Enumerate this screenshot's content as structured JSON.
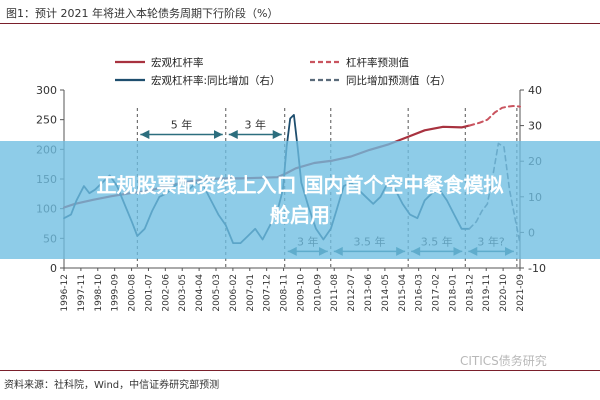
{
  "page": {
    "figure_title": "图1：预计 2021 年将进入本轮债务周期下行阶段（%）",
    "source": "资料来源：社科院，Wind，中信证券研究部预测",
    "watermark": "CITICS债务研究",
    "overlay_text": "正规股票配资线上入口 国内首个空中餐食模拟舱启用"
  },
  "chart_data": {
    "type": "line",
    "title": "",
    "xlabel": "",
    "ylabel_left": "",
    "ylabel_right": "",
    "ylim_left": [
      0,
      300
    ],
    "yticks_left": [
      0,
      50,
      100,
      150,
      200,
      250,
      300
    ],
    "ylim_right": [
      -10,
      40
    ],
    "yticks_right": [
      -10,
      0,
      10,
      20,
      30,
      40
    ],
    "grid": false,
    "legend_position": "top",
    "x_tick_labels": [
      "1996-12",
      "1997-11",
      "1998-10",
      "1999-09",
      "2000-08",
      "2001-07",
      "2002-06",
      "2003-05",
      "2004-04",
      "2005-03",
      "2006-02",
      "2007-01",
      "2007-12",
      "2008-11",
      "2009-10",
      "2010-09",
      "2011-08",
      "2012-07",
      "2013-06",
      "2014-05",
      "2015-04",
      "2016-03",
      "2017-02",
      "2018-01",
      "2018-12",
      "2019-11",
      "2020-10",
      "2021-09"
    ],
    "x_range": [
      1996.92,
      2021.67
    ],
    "series": [
      {
        "name": "宏观杠杆率",
        "axis": "left",
        "color": "#a8323f",
        "style": "solid",
        "width": 2.2,
        "x": [
          1996.92,
          1997.5,
          1998.5,
          1999.5,
          2000.5,
          2001.5,
          2002.5,
          2003.5,
          2004.5,
          2005.5,
          2006.5,
          2007.5,
          2008.5,
          2009.0,
          2009.5,
          2010.5,
          2011.5,
          2012.5,
          2013.5,
          2014.5,
          2015.5,
          2016.5,
          2017.5,
          2018.5,
          2018.92
        ],
        "y": [
          102,
          108,
          115,
          121,
          126,
          130,
          138,
          145,
          149,
          151,
          151,
          152,
          153,
          160,
          168,
          177,
          181,
          188,
          199,
          208,
          220,
          232,
          238,
          237,
          240
        ]
      },
      {
        "name": "杠杆率预测值",
        "axis": "left",
        "color": "#c9545f",
        "style": "dashed",
        "width": 2.0,
        "x": [
          2018.92,
          2019.5,
          2019.9,
          2020.3,
          2020.7,
          2021.0,
          2021.3,
          2021.67
        ],
        "y": [
          240,
          245,
          250,
          262,
          270,
          272,
          273,
          272
        ]
      },
      {
        "name": "宏观杠杆率:同比增加（右）",
        "axis": "right",
        "color": "#1e4e6e",
        "style": "solid",
        "width": 1.8,
        "x": [
          1996.92,
          1997.3,
          1997.6,
          1998.0,
          1998.3,
          1998.6,
          1999.0,
          1999.4,
          1999.8,
          2000.2,
          2000.6,
          2000.9,
          2001.3,
          2001.7,
          2002.1,
          2002.5,
          2002.9,
          2003.3,
          2003.7,
          2004.1,
          2004.5,
          2004.9,
          2005.3,
          2005.7,
          2006.1,
          2006.5,
          2006.9,
          2007.3,
          2007.7,
          2008.1,
          2008.5,
          2008.8,
          2009.0,
          2009.2,
          2009.4,
          2009.6,
          2009.8,
          2010.2,
          2010.6,
          2011.0,
          2011.4,
          2011.7,
          2012.1,
          2012.5,
          2012.9,
          2013.3,
          2013.7,
          2014.1,
          2014.5,
          2014.9,
          2015.3,
          2015.7,
          2016.1,
          2016.5,
          2016.9,
          2017.3,
          2017.7,
          2018.1,
          2018.5,
          2018.92
        ],
        "y": [
          4,
          5,
          9,
          13,
          11,
          12,
          14,
          16,
          13,
          8,
          3,
          -1,
          1,
          6,
          10,
          11,
          13,
          14,
          12,
          14,
          13,
          9,
          5,
          2,
          -3,
          -3,
          -1,
          1,
          -2,
          2,
          6,
          12,
          24,
          32,
          33,
          24,
          14,
          7,
          1,
          -2,
          1,
          6,
          13,
          14,
          12,
          10,
          8,
          10,
          14,
          12,
          8,
          5,
          4,
          9,
          11,
          12,
          9,
          5,
          1,
          1
        ]
      },
      {
        "name": "同比增加预测值（右）",
        "axis": "right",
        "color": "#5a6b7a",
        "style": "dashed",
        "width": 1.6,
        "x": [
          2018.92,
          2019.3,
          2019.6,
          2019.9,
          2020.2,
          2020.5,
          2020.8,
          2021.1,
          2021.4,
          2021.67
        ],
        "y": [
          1,
          3,
          6,
          8,
          16,
          25,
          24,
          12,
          4,
          -3
        ]
      }
    ],
    "annotations": [
      {
        "label": "5 年",
        "from": 2000.9,
        "to": 2005.7,
        "axis": "left",
        "y": 225,
        "label_pos": "above"
      },
      {
        "label": "3 年",
        "from": 2005.7,
        "to": 2008.9,
        "axis": "left",
        "y": 225,
        "label_pos": "above"
      },
      {
        "label": "3 年",
        "from": 2008.9,
        "to": 2011.4,
        "axis": "left",
        "y": 28,
        "label_pos": "above"
      },
      {
        "label": "3.5 年",
        "from": 2011.4,
        "to": 2015.6,
        "axis": "left",
        "y": 28,
        "label_pos": "above"
      },
      {
        "label": "3.5 年",
        "from": 2015.6,
        "to": 2018.7,
        "axis": "left",
        "y": 28,
        "label_pos": "above"
      },
      {
        "label": "3 年?",
        "from": 2018.7,
        "to": 2021.5,
        "axis": "left",
        "y": 28,
        "label_pos": "above"
      }
    ],
    "dividers": [
      2000.9,
      2005.7,
      2008.9,
      2011.4,
      2015.6,
      2018.7,
      2021.5
    ]
  }
}
